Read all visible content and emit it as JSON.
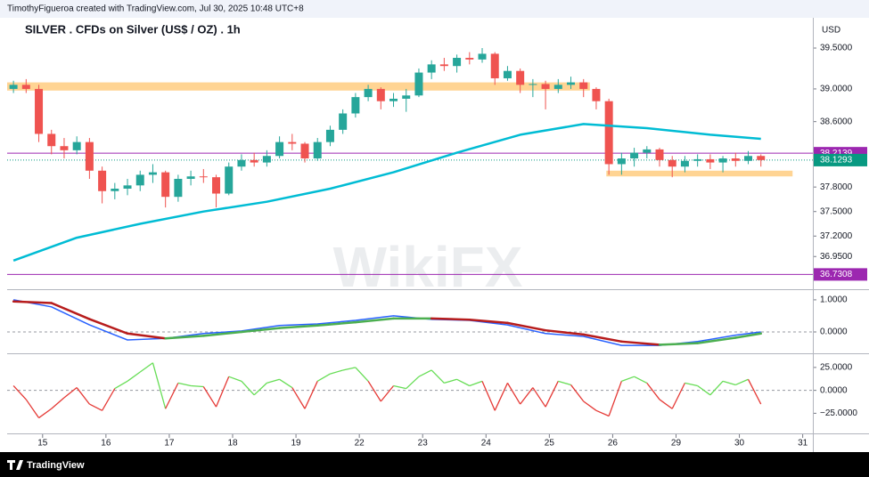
{
  "chart_data": {
    "type": "candlestick",
    "header": "TimothyFigueroa created with TradingView.com, Jul 30, 2025 10:48 UTC+8",
    "title": "SILVER . CFDs on Silver (US$ / OZ) . 1h",
    "currency_label": "USD",
    "watermark": "WikiFX",
    "footer": "TradingView",
    "up_color": "#26a69a",
    "down_color": "#ef5350",
    "candles": [
      [
        39.0,
        39.1,
        38.95,
        39.05
      ],
      [
        39.05,
        39.12,
        38.95,
        39.0
      ],
      [
        39.0,
        39.05,
        38.35,
        38.45
      ],
      [
        38.45,
        38.5,
        38.2,
        38.3
      ],
      [
        38.3,
        38.4,
        38.15,
        38.25
      ],
      [
        38.25,
        38.42,
        38.2,
        38.35
      ],
      [
        38.35,
        38.4,
        37.9,
        38.0
      ],
      [
        38.0,
        38.05,
        37.6,
        37.75
      ],
      [
        37.75,
        37.85,
        37.65,
        37.78
      ],
      [
        37.78,
        37.9,
        37.7,
        37.82
      ],
      [
        37.82,
        38.0,
        37.75,
        37.95
      ],
      [
        37.95,
        38.08,
        37.85,
        37.98
      ],
      [
        37.98,
        38.0,
        37.55,
        37.68
      ],
      [
        37.68,
        37.95,
        37.62,
        37.9
      ],
      [
        37.9,
        38.0,
        37.82,
        37.93
      ],
      [
        37.93,
        38.02,
        37.85,
        37.92
      ],
      [
        37.92,
        37.95,
        37.55,
        37.72
      ],
      [
        37.72,
        38.1,
        37.7,
        38.05
      ],
      [
        38.05,
        38.2,
        38.0,
        38.13
      ],
      [
        38.13,
        38.22,
        38.05,
        38.1
      ],
      [
        38.1,
        38.25,
        38.05,
        38.18
      ],
      [
        38.18,
        38.42,
        38.15,
        38.35
      ],
      [
        38.35,
        38.45,
        38.25,
        38.33
      ],
      [
        38.33,
        38.35,
        38.1,
        38.15
      ],
      [
        38.15,
        38.4,
        38.12,
        38.35
      ],
      [
        38.35,
        38.55,
        38.3,
        38.5
      ],
      [
        38.5,
        38.75,
        38.45,
        38.7
      ],
      [
        38.7,
        38.95,
        38.65,
        38.9
      ],
      [
        38.9,
        39.05,
        38.85,
        39.0
      ],
      [
        39.0,
        39.02,
        38.75,
        38.85
      ],
      [
        38.85,
        38.95,
        38.78,
        38.88
      ],
      [
        38.88,
        39.0,
        38.72,
        38.92
      ],
      [
        38.92,
        39.25,
        38.9,
        39.2
      ],
      [
        39.2,
        39.35,
        39.12,
        39.3
      ],
      [
        39.3,
        39.38,
        39.22,
        39.28
      ],
      [
        39.28,
        39.42,
        39.2,
        39.38
      ],
      [
        39.38,
        39.45,
        39.3,
        39.36
      ],
      [
        39.36,
        39.5,
        39.32,
        39.43
      ],
      [
        39.43,
        39.45,
        39.05,
        39.13
      ],
      [
        39.13,
        39.28,
        39.1,
        39.22
      ],
      [
        39.22,
        39.25,
        38.95,
        39.05
      ],
      [
        39.05,
        39.12,
        38.9,
        39.06
      ],
      [
        39.06,
        39.1,
        38.75,
        39.0
      ],
      [
        39.0,
        39.12,
        38.95,
        39.05
      ],
      [
        39.05,
        39.15,
        39.0,
        39.08
      ],
      [
        39.08,
        39.12,
        38.9,
        39.0
      ],
      [
        39.0,
        39.02,
        38.75,
        38.85
      ],
      [
        38.85,
        38.88,
        37.95,
        38.08
      ],
      [
        38.08,
        38.22,
        37.95,
        38.15
      ],
      [
        38.15,
        38.28,
        38.05,
        38.22
      ],
      [
        38.22,
        38.3,
        38.15,
        38.26
      ],
      [
        38.26,
        38.28,
        38.05,
        38.13
      ],
      [
        38.13,
        38.18,
        37.92,
        38.05
      ],
      [
        38.05,
        38.18,
        37.98,
        38.12
      ],
      [
        38.12,
        38.2,
        38.05,
        38.14
      ],
      [
        38.14,
        38.2,
        38.02,
        38.1
      ],
      [
        38.1,
        38.18,
        37.98,
        38.15
      ],
      [
        38.15,
        38.22,
        38.05,
        38.12
      ],
      [
        38.12,
        38.24,
        38.08,
        38.18
      ],
      [
        38.18,
        38.2,
        38.05,
        38.13
      ]
    ],
    "xlim": [
      -0.5,
      63.1
    ],
    "xticks": [
      {
        "value": 2.3,
        "label": "15"
      },
      {
        "value": 7.3,
        "label": "16"
      },
      {
        "value": 12.3,
        "label": "17"
      },
      {
        "value": 17.3,
        "label": "18"
      },
      {
        "value": 22.3,
        "label": "19"
      },
      {
        "value": 27.3,
        "label": "22"
      },
      {
        "value": 32.3,
        "label": "23"
      },
      {
        "value": 37.3,
        "label": "24"
      },
      {
        "value": 42.3,
        "label": "25"
      },
      {
        "value": 47.3,
        "label": "26"
      },
      {
        "value": 52.3,
        "label": "29"
      },
      {
        "value": 57.3,
        "label": "30"
      },
      {
        "value": 62.3,
        "label": "31"
      }
    ],
    "ylim": [
      36.55,
      39.87
    ],
    "yticks": [
      {
        "value": 39.5,
        "label": "39.5000"
      },
      {
        "value": 39.0,
        "label": "39.0000"
      },
      {
        "value": 38.6,
        "label": "38.6000"
      },
      {
        "value": 37.8,
        "label": "37.8000"
      },
      {
        "value": 37.5,
        "label": "37.5000"
      },
      {
        "value": 37.2,
        "label": "37.2000"
      },
      {
        "value": 36.95,
        "label": "36.9500"
      }
    ],
    "ma": {
      "color": "#00bcd4",
      "x": [
        0,
        5,
        10,
        15,
        20,
        25,
        30,
        35,
        40,
        45,
        50,
        55,
        59
      ],
      "values": [
        36.9,
        37.18,
        37.35,
        37.5,
        37.62,
        37.78,
        37.98,
        38.22,
        38.44,
        38.57,
        38.52,
        38.44,
        38.39
      ]
    },
    "zones": [
      {
        "from": 38.98,
        "to": 39.08,
        "x": [
          -0.5,
          45.5
        ],
        "color": "#ffcc80"
      },
      {
        "from": 37.93,
        "to": 38.0,
        "x": [
          46.8,
          61.5
        ],
        "color": "#ffcc80"
      }
    ],
    "levels": [
      {
        "value": 38.2139,
        "label": "38.2139",
        "color": "#9c27b0",
        "style": "solid"
      },
      {
        "value": 38.1293,
        "label": "38.1293",
        "color": "#089981",
        "style": "dotted"
      },
      {
        "value": 36.7308,
        "label": "36.7308",
        "color": "#9c27b0",
        "style": "solid"
      }
    ],
    "macd": {
      "ylim": [
        -0.61,
        1.33
      ],
      "yticks": [
        {
          "value": 1,
          "label": "1.0000"
        },
        {
          "value": 0,
          "label": "0.0000"
        }
      ],
      "macd": {
        "color": "#2962ff",
        "x": [
          0,
          3,
          6,
          9,
          12,
          15,
          18,
          21,
          24,
          27,
          30,
          33,
          36,
          39,
          42,
          45,
          48,
          51,
          54,
          57,
          59
        ],
        "values": [
          1.0,
          0.78,
          0.22,
          -0.25,
          -0.2,
          -0.05,
          0.03,
          0.2,
          0.25,
          0.36,
          0.5,
          0.39,
          0.36,
          0.22,
          -0.05,
          -0.14,
          -0.42,
          -0.42,
          -0.3,
          -0.1,
          0.0
        ]
      },
      "signal": {
        "up_color": "#4caf50",
        "down_color": "#b71c1c",
        "x": [
          0,
          3,
          6,
          9,
          12,
          15,
          18,
          21,
          24,
          27,
          30,
          33,
          36,
          39,
          42,
          45,
          48,
          51,
          54,
          57,
          59
        ],
        "values": [
          0.95,
          0.9,
          0.4,
          -0.05,
          -0.2,
          -0.12,
          0.0,
          0.12,
          0.2,
          0.3,
          0.42,
          0.42,
          0.38,
          0.28,
          0.05,
          -0.08,
          -0.3,
          -0.4,
          -0.35,
          -0.18,
          -0.05
        ]
      }
    },
    "oscillator": {
      "ylim": [
        -45,
        37.5
      ],
      "yticks": [
        {
          "value": 25,
          "label": "25.0000"
        },
        {
          "value": 0,
          "label": "0.0000"
        },
        {
          "value": -25,
          "label": "−25.0000"
        }
      ],
      "up_color": "#66dd55",
      "down_color": "#e53935",
      "values": [
        5,
        -10,
        -30,
        -20,
        -8,
        3,
        -15,
        -22,
        2,
        10,
        20,
        30,
        -20,
        8,
        5,
        4,
        -18,
        15,
        10,
        -5,
        8,
        12,
        3,
        -20,
        10,
        18,
        22,
        25,
        10,
        -12,
        5,
        2,
        15,
        22,
        8,
        12,
        5,
        10,
        -22,
        8,
        -15,
        3,
        -18,
        10,
        6,
        -12,
        -22,
        -28,
        10,
        15,
        8,
        -10,
        -20,
        8,
        5,
        -5,
        10,
        6,
        12,
        -15
      ]
    }
  }
}
